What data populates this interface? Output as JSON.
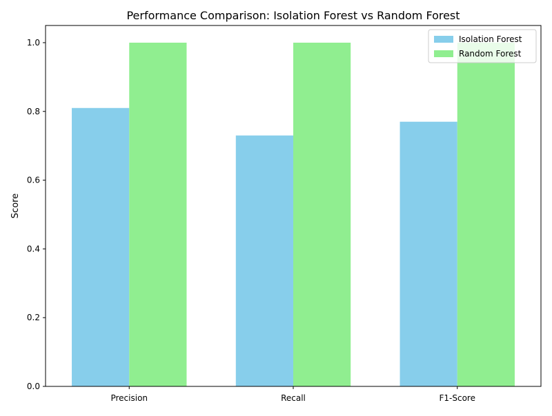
{
  "chart_data": {
    "type": "bar",
    "title": "Performance Comparison: Isolation Forest vs Random Forest",
    "xlabel": "",
    "ylabel": "Score",
    "categories": [
      "Precision",
      "Recall",
      "F1-Score"
    ],
    "series": [
      {
        "name": "Isolation Forest",
        "values": [
          0.81,
          0.73,
          0.77
        ],
        "color": "#87CEEB"
      },
      {
        "name": "Random Forest",
        "values": [
          1.0,
          1.0,
          1.0
        ],
        "color": "#90EE90"
      }
    ],
    "ylim": [
      0,
      1.05
    ],
    "yticks": [
      0.0,
      0.2,
      0.4,
      0.6,
      0.8,
      1.0
    ],
    "ytick_labels": [
      "0.0",
      "0.2",
      "0.4",
      "0.6",
      "0.8",
      "1.0"
    ],
    "grid": false,
    "legend_position": "top-right"
  }
}
